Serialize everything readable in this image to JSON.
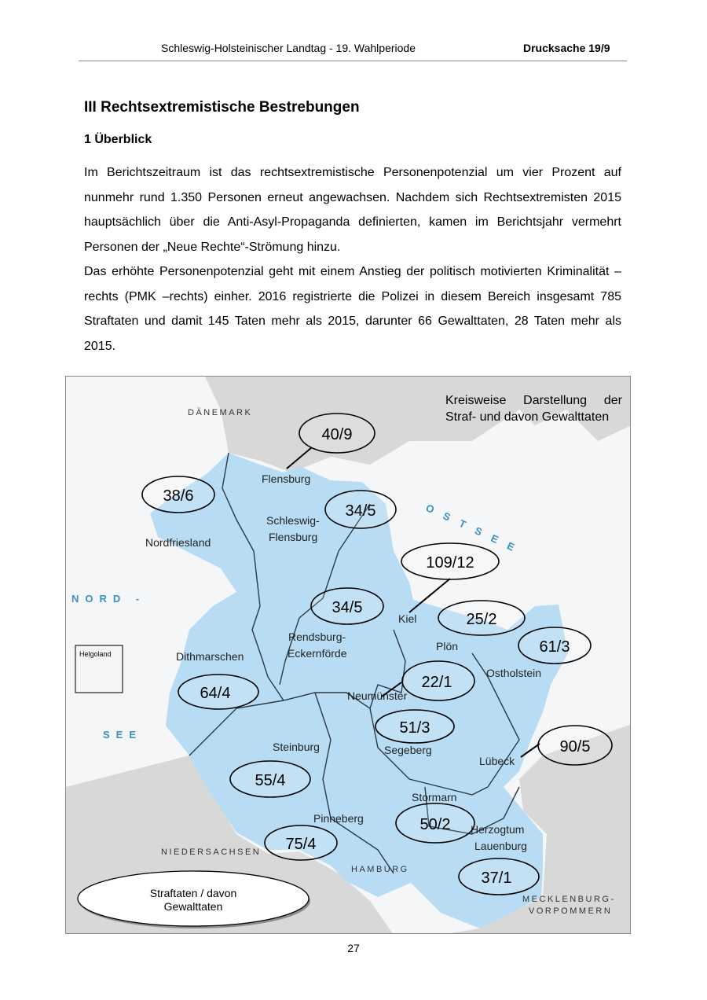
{
  "header": {
    "title": "Schleswig-Holsteinischer Landtag - 19. Wahlperiode",
    "doc": "Drucksache 19/9"
  },
  "heading1": "III Rechtsextremistische Bestrebungen",
  "heading2": "1 Überblick",
  "paragraphs": [
    "Im Berichtszeitraum ist das rechtsextremistische Personenpotenzial um vier Prozent auf nunmehr rund 1.350 Personen erneut angewachsen. Nachdem sich Rechtsex­tremisten 2015 hauptsächlich über die Anti-Asyl-Propaganda definierten, kamen im Berichtsjahr vermehrt Personen der „Neue Rechte“-Strömung hinzu.",
    "Das erhöhte Personenpotenzial geht mit einem Anstieg der politisch motivierten Kri­minalität –rechts (PMK –rechts) einher. 2016 registrierte die Polizei in diesem Be­reich insgesamt 785 Straftaten und damit 145 Taten mehr als 2015, darunter 66 Ge­walttaten, 28 Taten mehr als 2015."
  ],
  "map": {
    "caption": "Kreisweise Darstellung der Straf- und davon Gewalttaten",
    "legend": [
      "Straftaten / davon",
      "Gewalttaten"
    ],
    "colors": {
      "land": "#b8dcf3",
      "neighbor": "#d8d8d8",
      "sea": "#f4f6f7",
      "border": "#2b3a44"
    },
    "countries": {
      "dk": "DÄNEMARK",
      "nds": "NIEDERSACHSEN",
      "hh": "HAMBURG",
      "mv1": "MECKLENBURG-",
      "mv2": "VORPOMMERN",
      "nord": "NORD -",
      "see": "SEE",
      "ostsee": "OSTSEE",
      "helgoland": "Helgoland"
    },
    "regions": {
      "flensburg": "Flensburg",
      "slfl1": "Schleswig-",
      "slfl2": "Flensburg",
      "nf": "Nordfriesland",
      "kiel": "Kiel",
      "rd1": "Rendsburg-",
      "rd2": "Eckernförde",
      "ploen": "Plön",
      "oh": "Ostholstein",
      "dith": "Dithmarschen",
      "nms": "Neumünster",
      "se": "Segeberg",
      "stb": "Steinburg",
      "hl": "Lübeck",
      "stormarn": "Stormarn",
      "pi": "Pinneberg",
      "rz1": "Herzogtum",
      "rz2": "Lauenburg"
    },
    "values": {
      "flensburg": "40/9",
      "nf": "38/6",
      "slfl": "34/5",
      "kiel": "109/12",
      "rd": "34/5",
      "ploen": "25/2",
      "oh": "61/3",
      "dith": "64/4",
      "nms": "22/1",
      "se": "51/3",
      "hl": "90/5",
      "stb": "55/4",
      "stormarn": "50/2",
      "pi": "75/4",
      "rz": "37/1"
    }
  },
  "page_number": "27"
}
